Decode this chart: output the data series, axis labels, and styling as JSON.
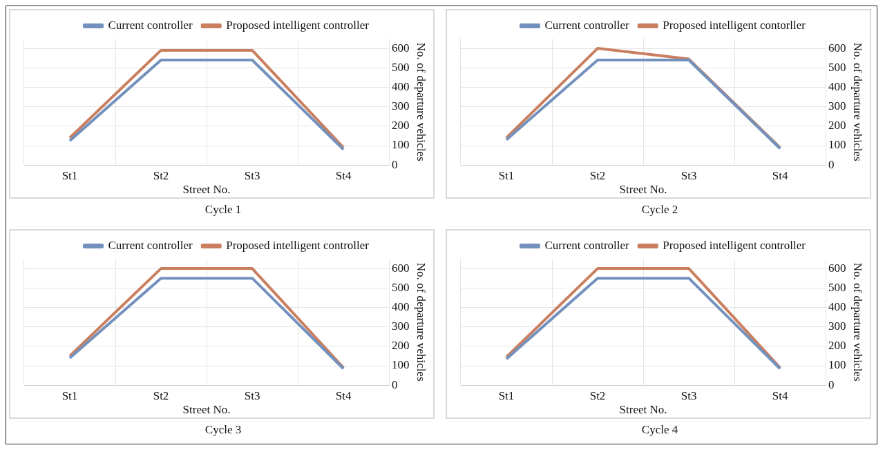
{
  "chart_data": [
    {
      "type": "line",
      "title": "Cycle 1",
      "xlabel": "Street No.",
      "ylabel": "No. of departure vehicles",
      "categories": [
        "St1",
        "St2",
        "St3",
        "St4"
      ],
      "ylim": [
        0,
        650
      ],
      "yticks": [
        0,
        100,
        200,
        300,
        400,
        500,
        600
      ],
      "grid": true,
      "legend": "top",
      "marker": "none",
      "series": [
        {
          "name": "Current controller",
          "color": "#7391bd",
          "values": [
            125,
            540,
            540,
            80
          ]
        },
        {
          "name": "Proposed intelligent controller",
          "color": "#c97f5f",
          "values": [
            140,
            590,
            590,
            90
          ]
        }
      ]
    },
    {
      "type": "line",
      "title": "Cycle 2",
      "xlabel": "Street No.",
      "ylabel": "No. of departure vehicles",
      "categories": [
        "St1",
        "St2",
        "St3",
        "St4"
      ],
      "ylim": [
        0,
        650
      ],
      "yticks": [
        0,
        100,
        200,
        300,
        400,
        500,
        600
      ],
      "grid": true,
      "legend": "top",
      "marker": "none",
      "series": [
        {
          "name": "Current controller",
          "color": "#7391bd",
          "values": [
            130,
            540,
            540,
            85
          ]
        },
        {
          "name": "Proposed intelligent contorller",
          "color": "#c97f5f",
          "values": [
            140,
            600,
            545,
            90
          ]
        }
      ]
    },
    {
      "type": "line",
      "title": "Cycle 3",
      "xlabel": "Street No.",
      "ylabel": "No. of departure vehicles",
      "categories": [
        "St1",
        "St2",
        "St3",
        "St4"
      ],
      "ylim": [
        0,
        650
      ],
      "yticks": [
        0,
        100,
        200,
        300,
        400,
        500,
        600
      ],
      "grid": true,
      "legend": "top",
      "marker": "none",
      "series": [
        {
          "name": "Current controller",
          "color": "#7391bd",
          "values": [
            140,
            550,
            550,
            85
          ]
        },
        {
          "name": "Proposed intelligent controller",
          "color": "#c97f5f",
          "values": [
            150,
            600,
            600,
            90
          ]
        }
      ]
    },
    {
      "type": "line",
      "title": "Cycle 4",
      "xlabel": "Street No.",
      "ylabel": "No. of departure vehicles",
      "categories": [
        "St1",
        "St2",
        "St3",
        "St4"
      ],
      "ylim": [
        0,
        650
      ],
      "yticks": [
        0,
        100,
        200,
        300,
        400,
        500,
        600
      ],
      "grid": true,
      "legend": "top",
      "marker": "none",
      "series": [
        {
          "name": "Current controller",
          "color": "#7391bd",
          "values": [
            135,
            550,
            550,
            85
          ]
        },
        {
          "name": "Proposed intelligent controller",
          "color": "#c97f5f",
          "values": [
            145,
            600,
            600,
            90
          ]
        }
      ]
    }
  ]
}
